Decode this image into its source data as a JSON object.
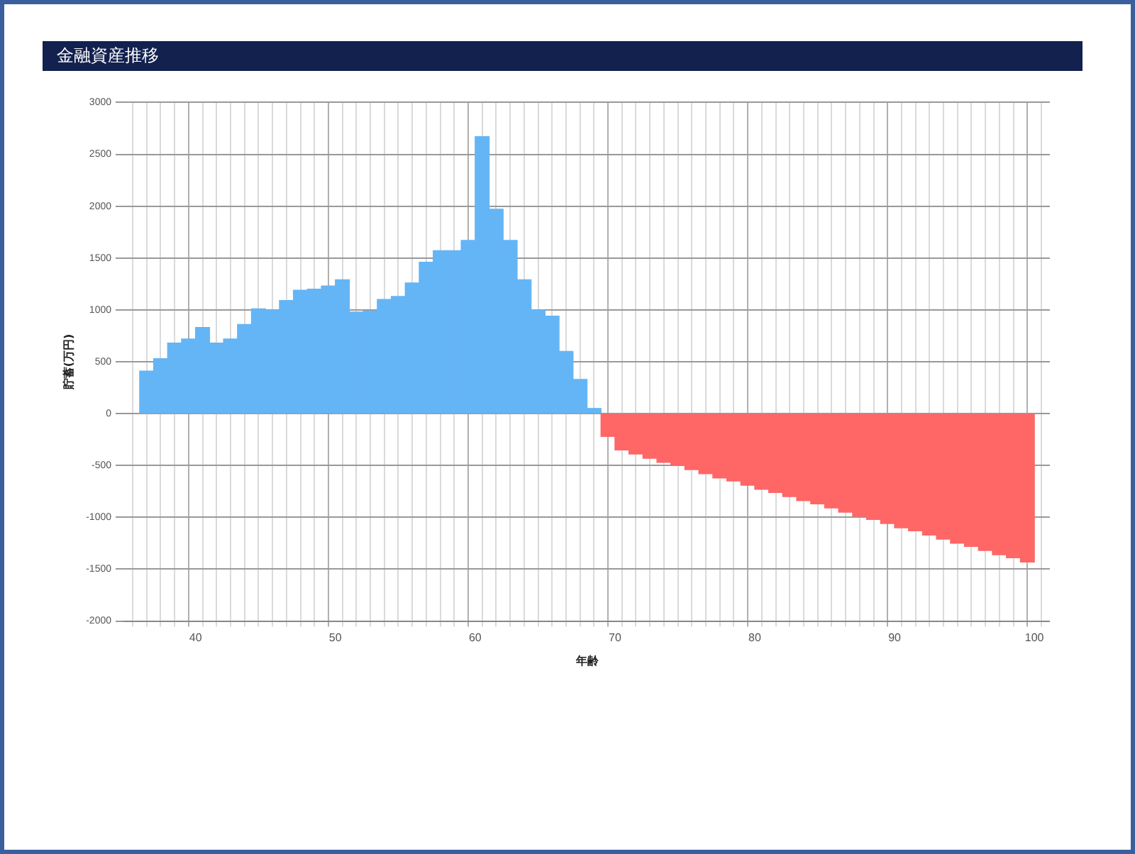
{
  "chart_data": {
    "type": "histogram",
    "title": "金融資産推移",
    "xlabel": "年齢",
    "ylabel": "貯蓄(万円)",
    "bins": [
      36,
      37,
      38,
      39,
      40,
      41,
      42,
      43,
      44,
      45,
      46,
      47,
      48,
      49,
      50,
      51,
      52,
      53,
      54,
      55,
      56,
      57,
      58,
      59,
      60,
      61,
      62,
      63,
      64,
      65,
      66,
      67,
      68,
      69,
      70,
      71,
      72,
      73,
      74,
      75,
      76,
      77,
      78,
      79,
      80,
      81,
      82,
      83,
      84,
      85,
      86,
      87,
      88,
      89,
      90,
      91,
      92,
      93,
      94,
      95,
      96,
      97,
      98,
      99,
      100
    ],
    "values": [
      410,
      530,
      680,
      720,
      830,
      680,
      720,
      860,
      1010,
      1000,
      1090,
      1190,
      1200,
      1230,
      1290,
      980,
      990,
      1100,
      1130,
      1260,
      1460,
      1570,
      1570,
      1670,
      2670,
      1970,
      1670,
      1290,
      1000,
      940,
      600,
      330,
      50,
      -220,
      -350,
      -390,
      -430,
      -470,
      -500,
      -540,
      -580,
      -620,
      -650,
      -690,
      -730,
      -760,
      -800,
      -840,
      -870,
      -910,
      -950,
      -990,
      -1020,
      -1060,
      -1100,
      -1130,
      -1170,
      -1210,
      -1250,
      -1280,
      -1320,
      -1360,
      -1390,
      -1430
    ],
    "colors": [
      "#64b5f6",
      "#64b5f6",
      "#64b5f6",
      "#64b5f6",
      "#64b5f6",
      "#64b5f6",
      "#64b5f6",
      "#64b5f6",
      "#64b5f6",
      "#64b5f6",
      "#64b5f6",
      "#64b5f6",
      "#64b5f6",
      "#64b5f6",
      "#64b5f6",
      "#64b5f6",
      "#64b5f6",
      "#64b5f6",
      "#64b5f6",
      "#64b5f6",
      "#64b5f6",
      "#64b5f6",
      "#64b5f6",
      "#64b5f6",
      "#64b5f6",
      "#64b5f6",
      "#64b5f6",
      "#64b5f6",
      "#64b5f6",
      "#64b5f6",
      "#64b5f6",
      "#64b5f6",
      "#64b5f6",
      "#ff6666",
      "#ff6666",
      "#ff6666",
      "#ff6666",
      "#ff6666",
      "#ff6666",
      "#ff6666",
      "#ff6666",
      "#ff6666",
      "#ff6666",
      "#ff6666",
      "#ff6666",
      "#ff6666",
      "#ff6666",
      "#ff6666",
      "#ff6666",
      "#ff6666",
      "#ff6666",
      "#ff6666",
      "#ff6666",
      "#ff6666",
      "#ff6666",
      "#ff6666",
      "#ff6666",
      "#ff6666",
      "#ff6666",
      "#ff6666",
      "#ff6666",
      "#ff6666",
      "#ff6666",
      "#ff6666"
    ],
    "xlim": [
      35.4,
      100.6
    ],
    "xticks": [
      40,
      50,
      60,
      70,
      80,
      90,
      100
    ],
    "ylim": [
      -2000,
      3000
    ],
    "yticks": [
      -2000,
      -1500,
      -1000,
      -500,
      0,
      500,
      1000,
      1500,
      2000,
      2500,
      3000
    ],
    "grid": true,
    "legend": false
  }
}
